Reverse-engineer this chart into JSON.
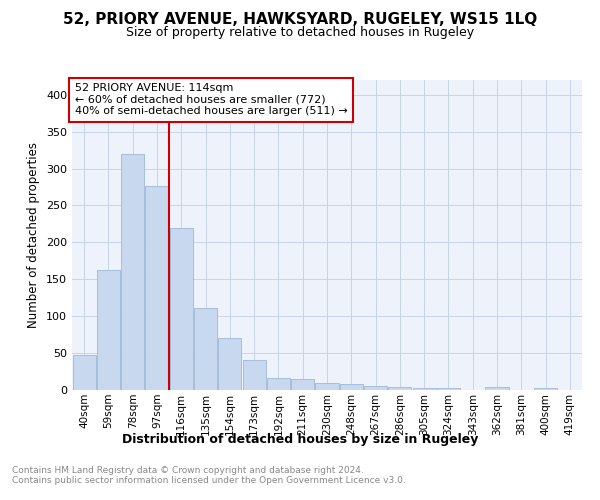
{
  "title1": "52, PRIORY AVENUE, HAWKSYARD, RUGELEY, WS15 1LQ",
  "title2": "Size of property relative to detached houses in Rugeley",
  "xlabel": "Distribution of detached houses by size in Rugeley",
  "ylabel": "Number of detached properties",
  "categories": [
    "40sqm",
    "59sqm",
    "78sqm",
    "97sqm",
    "116sqm",
    "135sqm",
    "154sqm",
    "173sqm",
    "192sqm",
    "211sqm",
    "230sqm",
    "248sqm",
    "267sqm",
    "286sqm",
    "305sqm",
    "324sqm",
    "343sqm",
    "362sqm",
    "381sqm",
    "400sqm",
    "419sqm"
  ],
  "values": [
    47,
    163,
    320,
    277,
    220,
    111,
    71,
    40,
    16,
    15,
    10,
    8,
    5,
    4,
    3,
    3,
    0,
    4,
    0,
    3,
    0
  ],
  "bar_color": "#c8d9ef",
  "bar_edge_color": "#9cb8d8",
  "vline_x_index": 4,
  "vline_color": "#cc0000",
  "box_text": "52 PRIORY AVENUE: 114sqm\n← 60% of detached houses are smaller (772)\n40% of semi-detached houses are larger (511) →",
  "box_color": "#cc0000",
  "box_bg": "#ffffff",
  "ylim": [
    0,
    420
  ],
  "yticks": [
    0,
    50,
    100,
    150,
    200,
    250,
    300,
    350,
    400
  ],
  "grid_color": "#c8d4e8",
  "footer": "Contains HM Land Registry data © Crown copyright and database right 2024.\nContains public sector information licensed under the Open Government Licence v3.0.",
  "bg_color": "#eef2fa",
  "title1_fontsize": 11,
  "title2_fontsize": 9,
  "xlabel_fontsize": 9,
  "ylabel_fontsize": 8.5
}
